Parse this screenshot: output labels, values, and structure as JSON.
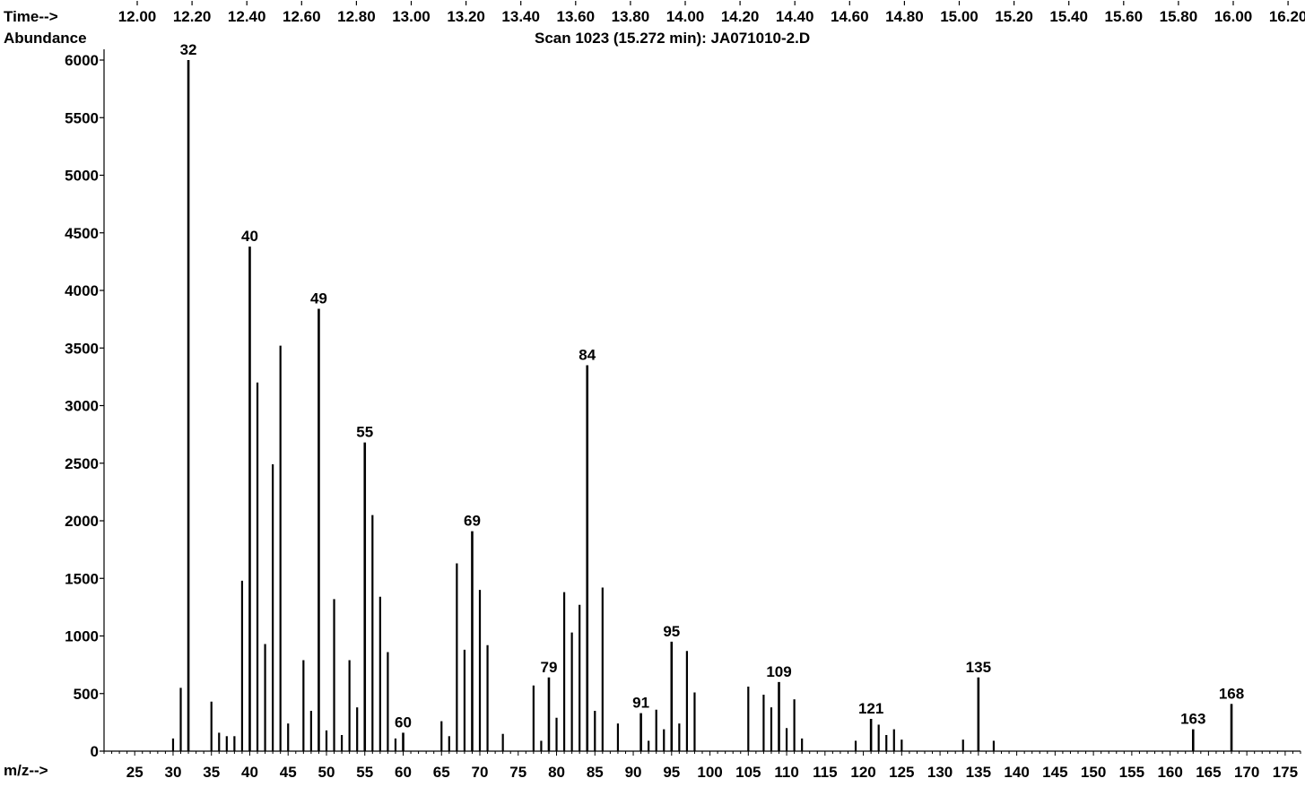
{
  "header": {
    "time_label": "Time-->",
    "abundance_label": "Abundance",
    "scan_title": "Scan 1023 (15.272 min): JA071010-2.D"
  },
  "chart_data": {
    "type": "bar",
    "title": "Scan 1023 (15.272 min): JA071010-2.D",
    "xlabel": "m/z-->",
    "ylabel": "Abundance",
    "time_axis": {
      "label": "Time-->",
      "ticks": [
        "12.00",
        "12.20",
        "12.40",
        "12.60",
        "12.80",
        "13.00",
        "13.20",
        "13.40",
        "13.60",
        "13.80",
        "14.00",
        "14.20",
        "14.40",
        "14.60",
        "14.80",
        "15.00",
        "15.20",
        "15.40",
        "15.60",
        "15.80",
        "16.00",
        "16.20"
      ]
    },
    "xlim": [
      21,
      177
    ],
    "ylim": [
      0,
      6000
    ],
    "xticks": [
      25,
      30,
      35,
      40,
      45,
      50,
      55,
      60,
      65,
      70,
      75,
      80,
      85,
      90,
      95,
      100,
      105,
      110,
      115,
      120,
      125,
      130,
      135,
      140,
      145,
      150,
      155,
      160,
      165,
      170,
      175
    ],
    "yticks": [
      0,
      500,
      1000,
      1500,
      2000,
      2500,
      3000,
      3500,
      4000,
      4500,
      5000,
      5500,
      6000
    ],
    "peaks": [
      {
        "mz": 30,
        "abundance": 110
      },
      {
        "mz": 31,
        "abundance": 550
      },
      {
        "mz": 32,
        "abundance": 6000
      },
      {
        "mz": 35,
        "abundance": 430
      },
      {
        "mz": 36,
        "abundance": 160
      },
      {
        "mz": 37,
        "abundance": 130
      },
      {
        "mz": 38,
        "abundance": 130
      },
      {
        "mz": 39,
        "abundance": 1480
      },
      {
        "mz": 40,
        "abundance": 4380
      },
      {
        "mz": 41,
        "abundance": 3200
      },
      {
        "mz": 42,
        "abundance": 930
      },
      {
        "mz": 43,
        "abundance": 2490
      },
      {
        "mz": 44,
        "abundance": 3520
      },
      {
        "mz": 45,
        "abundance": 240
      },
      {
        "mz": 47,
        "abundance": 790
      },
      {
        "mz": 48,
        "abundance": 350
      },
      {
        "mz": 49,
        "abundance": 3840
      },
      {
        "mz": 50,
        "abundance": 180
      },
      {
        "mz": 51,
        "abundance": 1320
      },
      {
        "mz": 52,
        "abundance": 140
      },
      {
        "mz": 53,
        "abundance": 790
      },
      {
        "mz": 54,
        "abundance": 380
      },
      {
        "mz": 55,
        "abundance": 2680
      },
      {
        "mz": 56,
        "abundance": 2050
      },
      {
        "mz": 57,
        "abundance": 1340
      },
      {
        "mz": 58,
        "abundance": 860
      },
      {
        "mz": 59,
        "abundance": 110
      },
      {
        "mz": 60,
        "abundance": 160
      },
      {
        "mz": 65,
        "abundance": 260
      },
      {
        "mz": 66,
        "abundance": 130
      },
      {
        "mz": 67,
        "abundance": 1630
      },
      {
        "mz": 68,
        "abundance": 880
      },
      {
        "mz": 69,
        "abundance": 1910
      },
      {
        "mz": 70,
        "abundance": 1400
      },
      {
        "mz": 71,
        "abundance": 920
      },
      {
        "mz": 73,
        "abundance": 150
      },
      {
        "mz": 77,
        "abundance": 570
      },
      {
        "mz": 78,
        "abundance": 90
      },
      {
        "mz": 79,
        "abundance": 640
      },
      {
        "mz": 80,
        "abundance": 290
      },
      {
        "mz": 81,
        "abundance": 1380
      },
      {
        "mz": 82,
        "abundance": 1030
      },
      {
        "mz": 83,
        "abundance": 1270
      },
      {
        "mz": 84,
        "abundance": 3350
      },
      {
        "mz": 85,
        "abundance": 350
      },
      {
        "mz": 86,
        "abundance": 1420
      },
      {
        "mz": 88,
        "abundance": 240
      },
      {
        "mz": 91,
        "abundance": 330
      },
      {
        "mz": 92,
        "abundance": 90
      },
      {
        "mz": 93,
        "abundance": 360
      },
      {
        "mz": 94,
        "abundance": 190
      },
      {
        "mz": 95,
        "abundance": 950
      },
      {
        "mz": 96,
        "abundance": 240
      },
      {
        "mz": 97,
        "abundance": 870
      },
      {
        "mz": 98,
        "abundance": 510
      },
      {
        "mz": 105,
        "abundance": 560
      },
      {
        "mz": 107,
        "abundance": 490
      },
      {
        "mz": 108,
        "abundance": 380
      },
      {
        "mz": 109,
        "abundance": 600
      },
      {
        "mz": 110,
        "abundance": 200
      },
      {
        "mz": 111,
        "abundance": 450
      },
      {
        "mz": 112,
        "abundance": 110
      },
      {
        "mz": 119,
        "abundance": 90
      },
      {
        "mz": 121,
        "abundance": 280
      },
      {
        "mz": 122,
        "abundance": 230
      },
      {
        "mz": 123,
        "abundance": 140
      },
      {
        "mz": 124,
        "abundance": 190
      },
      {
        "mz": 125,
        "abundance": 100
      },
      {
        "mz": 133,
        "abundance": 100
      },
      {
        "mz": 135,
        "abundance": 640
      },
      {
        "mz": 137,
        "abundance": 90
      },
      {
        "mz": 163,
        "abundance": 190
      },
      {
        "mz": 168,
        "abundance": 410
      }
    ],
    "labeled_peaks": [
      "32",
      "40",
      "49",
      "55",
      "60",
      "69",
      "79",
      "84",
      "91",
      "95",
      "109",
      "121",
      "135",
      "163",
      "168"
    ],
    "grid": false,
    "legend": "none"
  }
}
